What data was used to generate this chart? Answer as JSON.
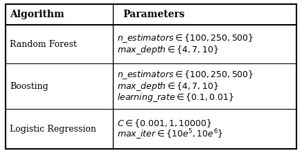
{
  "title_col1": "Algorithm",
  "title_col2": "Parameters",
  "rows": [
    {
      "algorithm": "Random Forest",
      "params": [
        "$n\\_estimators \\in \\{100, 250, 500\\}$",
        "$max\\_depth \\in \\{4, 7, 10\\}$"
      ]
    },
    {
      "algorithm": "Boosting",
      "params": [
        "$n\\_estimators \\in \\{100, 250, 500\\}$",
        "$max\\_depth \\in \\{4, 7, 10\\}$",
        "$learning\\_rate \\in \\{0.1, 0.01\\}$"
      ]
    },
    {
      "algorithm": "Logistic Regression",
      "params": [
        "$C \\in \\{0.001, 1, 10000\\}$",
        "$max\\_iter \\in \\{10e^5, 10e^6\\}$"
      ]
    }
  ],
  "background_color": "#ffffff",
  "line_color": "#000000",
  "header_fontsize": 10,
  "body_fontsize": 9,
  "param_fontsize": 9
}
